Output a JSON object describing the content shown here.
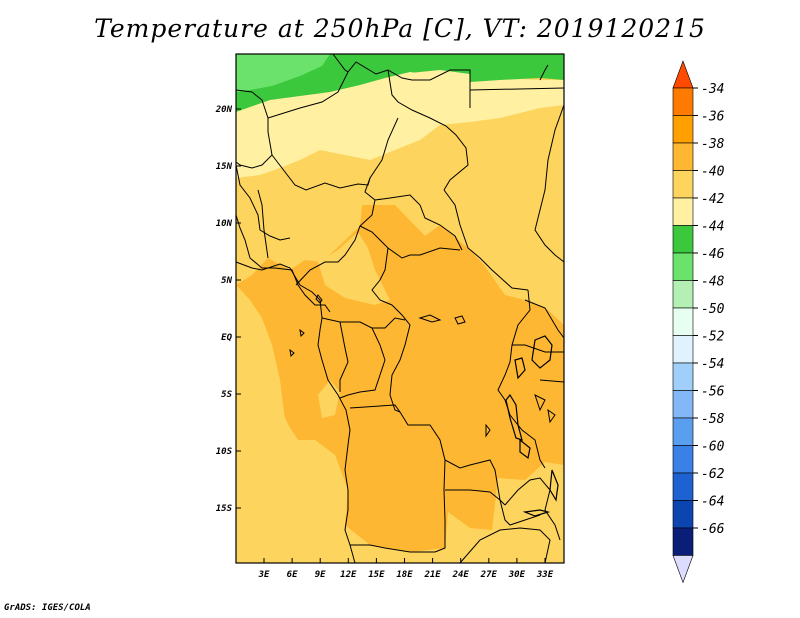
{
  "title": "Temperature at 250hPa [C], VT: 2019120215",
  "credit": "GrADS: IGES/COLA",
  "map": {
    "lat_labels": [
      {
        "label": "20N",
        "lat": 20
      },
      {
        "label": "15N",
        "lat": 15
      },
      {
        "label": "10N",
        "lat": 10
      },
      {
        "label": "5N",
        "lat": 5
      },
      {
        "label": "EQ",
        "lat": 0
      },
      {
        "label": "5S",
        "lat": -5
      },
      {
        "label": "10S",
        "lat": -10
      },
      {
        "label": "15S",
        "lat": -15
      }
    ],
    "lon_labels": [
      {
        "label": "3E",
        "lon": 3
      },
      {
        "label": "6E",
        "lon": 6
      },
      {
        "label": "9E",
        "lon": 9
      },
      {
        "label": "12E",
        "lon": 12
      },
      {
        "label": "15E",
        "lon": 15
      },
      {
        "label": "18E",
        "lon": 18
      },
      {
        "label": "21E",
        "lon": 21
      },
      {
        "label": "24E",
        "lon": 24
      },
      {
        "label": "27E",
        "lon": 27
      },
      {
        "label": "30E",
        "lon": 30
      },
      {
        "label": "33E",
        "lon": 33
      }
    ]
  },
  "colorbar": {
    "labels": [
      "-34",
      "-36",
      "-38",
      "-40",
      "-42",
      "-44",
      "-46",
      "-48",
      "-50",
      "-52",
      "-54",
      "-56",
      "-58",
      "-60",
      "-62",
      "-64",
      "-66"
    ],
    "colors": [
      "#ff4a00",
      "#ff7a00",
      "#ffa000",
      "#fdb733",
      "#fdd45e",
      "#fff0a2",
      "#3cc83c",
      "#6be26b",
      "#b4f0b4",
      "#e6fff0",
      "#e1f2ff",
      "#a0d0fa",
      "#82b8f5",
      "#5a9ef0",
      "#3a80e6",
      "#1e62d2",
      "#0c44b0",
      "#0a1e78",
      "#dcdcff"
    ]
  },
  "palette": {
    "c40": "#fdd45e",
    "c38": "#fdb733",
    "c42": "#fff0a2",
    "c44": "#3cc83c",
    "c46": "#6be26b"
  }
}
